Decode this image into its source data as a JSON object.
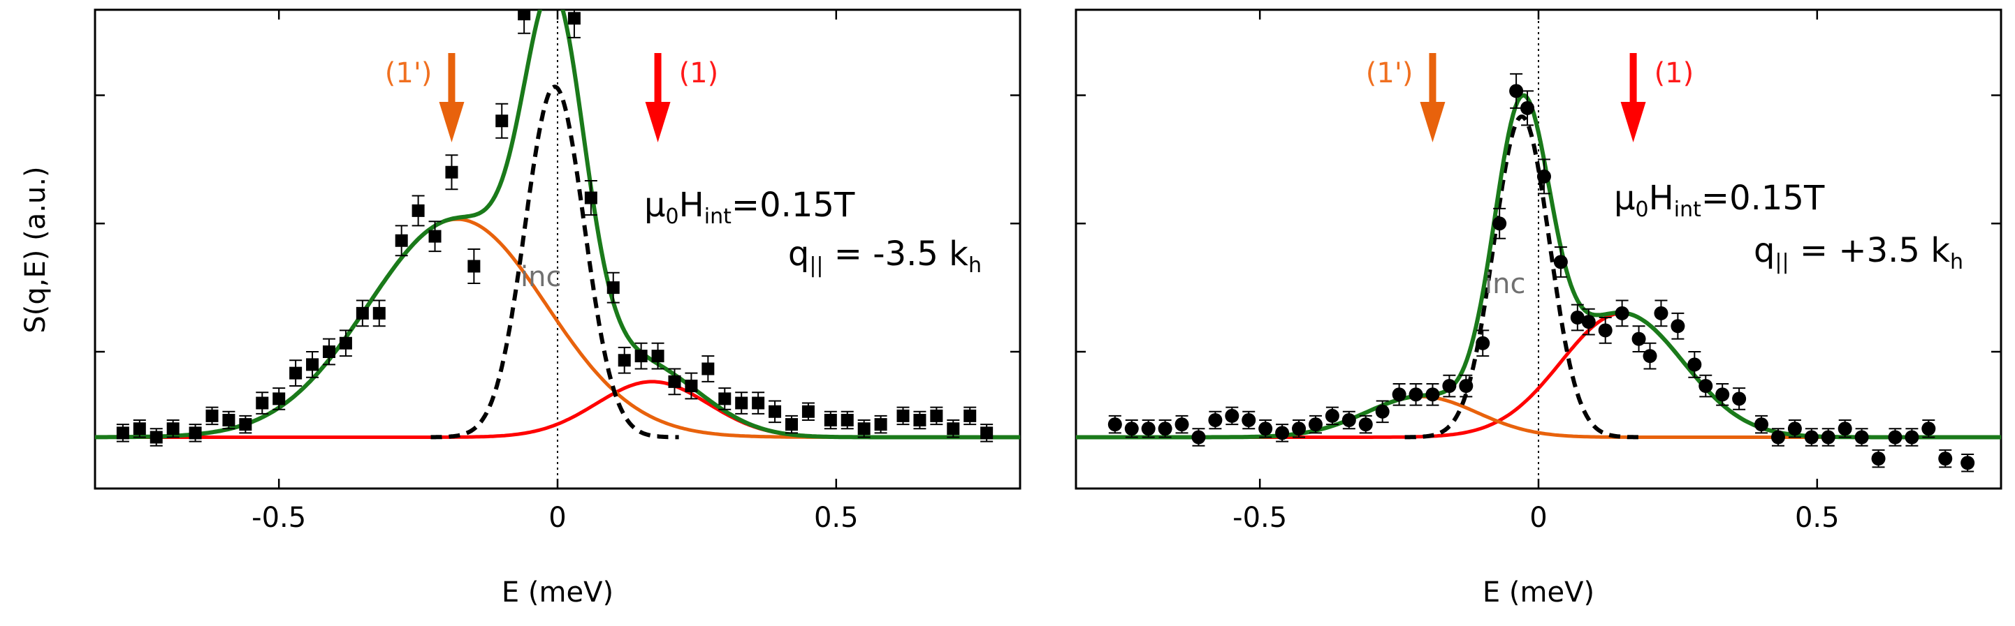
{
  "y_axis_label": "S(q,E) (a.u.)",
  "colors": {
    "total_fit": "#1a7a1a",
    "orange_mode": "#e8620c",
    "red_mode": "#ff0000",
    "incoherent": "#000000",
    "points": "#000000",
    "label_1prime": "#f07020",
    "label_1": "#ff1a1a",
    "inc_label": "#707070"
  },
  "chart_data": [
    {
      "type": "scatter",
      "panel": "left",
      "xlabel": "E (meV)",
      "ylabel": "S(q,E) (a.u.)",
      "xlim": [
        -0.83,
        0.83
      ],
      "ylim": [
        -0.12,
        1.0
      ],
      "xticks": [
        -0.5,
        0,
        0.5
      ],
      "xtick_labels": [
        "-0.5",
        "0",
        "0.5"
      ],
      "yticks": [
        0.2,
        0.5,
        0.8
      ],
      "marker": "square",
      "annotations": {
        "field": "μ0Hint=0.15T",
        "field_parts": {
          "mu": "μ",
          "mu_sub": "0",
          "H": "H",
          "H_sub": "int",
          "rest": "=0.15T"
        },
        "momentum": "q|| = -3.5 kh",
        "momentum_parts": {
          "q": "q",
          "q_sub": "||",
          "mid": " = -3.5 k",
          "k_sub": "h"
        },
        "inc_label": "inc",
        "arrow_1prime_label": "(1')",
        "arrow_1_label": "(1)"
      },
      "arrows": {
        "one_prime_E": -0.19,
        "one_E": 0.18
      },
      "curves": {
        "orange": {
          "center": -0.18,
          "amp": 0.51,
          "sigma": 0.16
        },
        "red": {
          "center": 0.17,
          "amp": 0.13,
          "sigma": 0.1
        },
        "incoherent": {
          "center": -0.005,
          "amp": 0.82,
          "sigma": 0.053
        },
        "total_peak": 1.05
      },
      "points": [
        {
          "x": -0.78,
          "y": 0.01,
          "err": 0.02
        },
        {
          "x": -0.75,
          "y": 0.02,
          "err": 0.02
        },
        {
          "x": -0.72,
          "y": 0.0,
          "err": 0.02
        },
        {
          "x": -0.69,
          "y": 0.02,
          "err": 0.02
        },
        {
          "x": -0.65,
          "y": 0.01,
          "err": 0.02
        },
        {
          "x": -0.62,
          "y": 0.05,
          "err": 0.02
        },
        {
          "x": -0.59,
          "y": 0.04,
          "err": 0.02
        },
        {
          "x": -0.56,
          "y": 0.03,
          "err": 0.02
        },
        {
          "x": -0.53,
          "y": 0.08,
          "err": 0.025
        },
        {
          "x": -0.5,
          "y": 0.09,
          "err": 0.025
        },
        {
          "x": -0.47,
          "y": 0.15,
          "err": 0.03
        },
        {
          "x": -0.44,
          "y": 0.17,
          "err": 0.03
        },
        {
          "x": -0.41,
          "y": 0.2,
          "err": 0.03
        },
        {
          "x": -0.38,
          "y": 0.22,
          "err": 0.03
        },
        {
          "x": -0.35,
          "y": 0.29,
          "err": 0.03
        },
        {
          "x": -0.32,
          "y": 0.29,
          "err": 0.03
        },
        {
          "x": -0.28,
          "y": 0.46,
          "err": 0.035
        },
        {
          "x": -0.25,
          "y": 0.53,
          "err": 0.035
        },
        {
          "x": -0.22,
          "y": 0.47,
          "err": 0.035
        },
        {
          "x": -0.19,
          "y": 0.62,
          "err": 0.04
        },
        {
          "x": -0.15,
          "y": 0.4,
          "err": 0.04
        },
        {
          "x": -0.1,
          "y": 0.74,
          "err": 0.04
        },
        {
          "x": -0.06,
          "y": 0.99,
          "err": 0.045
        },
        {
          "x": 0.03,
          "y": 0.98,
          "err": 0.045
        },
        {
          "x": 0.06,
          "y": 0.56,
          "err": 0.04
        },
        {
          "x": 0.1,
          "y": 0.35,
          "err": 0.035
        },
        {
          "x": 0.12,
          "y": 0.18,
          "err": 0.03
        },
        {
          "x": 0.15,
          "y": 0.19,
          "err": 0.03
        },
        {
          "x": 0.18,
          "y": 0.19,
          "err": 0.03
        },
        {
          "x": 0.21,
          "y": 0.13,
          "err": 0.03
        },
        {
          "x": 0.24,
          "y": 0.12,
          "err": 0.03
        },
        {
          "x": 0.27,
          "y": 0.16,
          "err": 0.03
        },
        {
          "x": 0.3,
          "y": 0.09,
          "err": 0.025
        },
        {
          "x": 0.33,
          "y": 0.08,
          "err": 0.025
        },
        {
          "x": 0.36,
          "y": 0.08,
          "err": 0.025
        },
        {
          "x": 0.39,
          "y": 0.06,
          "err": 0.025
        },
        {
          "x": 0.42,
          "y": 0.03,
          "err": 0.02
        },
        {
          "x": 0.45,
          "y": 0.06,
          "err": 0.02
        },
        {
          "x": 0.49,
          "y": 0.04,
          "err": 0.02
        },
        {
          "x": 0.52,
          "y": 0.04,
          "err": 0.02
        },
        {
          "x": 0.55,
          "y": 0.02,
          "err": 0.02
        },
        {
          "x": 0.58,
          "y": 0.03,
          "err": 0.02
        },
        {
          "x": 0.62,
          "y": 0.05,
          "err": 0.02
        },
        {
          "x": 0.65,
          "y": 0.04,
          "err": 0.02
        },
        {
          "x": 0.68,
          "y": 0.05,
          "err": 0.02
        },
        {
          "x": 0.71,
          "y": 0.02,
          "err": 0.02
        },
        {
          "x": 0.74,
          "y": 0.05,
          "err": 0.02
        },
        {
          "x": 0.77,
          "y": 0.01,
          "err": 0.02
        }
      ]
    },
    {
      "type": "scatter",
      "panel": "right",
      "xlabel": "E (meV)",
      "ylabel": "",
      "xlim": [
        -0.83,
        0.83
      ],
      "ylim": [
        -0.12,
        1.0
      ],
      "xticks": [
        -0.5,
        0,
        0.5
      ],
      "xtick_labels": [
        "-0.5",
        "0",
        "0.5"
      ],
      "yticks": [
        0.2,
        0.5,
        0.8
      ],
      "marker": "circle",
      "annotations": {
        "field": "μ0Hint=0.15T",
        "field_parts": {
          "mu": "μ",
          "mu_sub": "0",
          "H": "H",
          "H_sub": "int",
          "rest": "=0.15T"
        },
        "momentum": "q|| = +3.5 kh",
        "momentum_parts": {
          "q": "q",
          "q_sub": "||",
          "mid": " = +3.5 k",
          "k_sub": "h"
        },
        "inc_label": "inc",
        "arrow_1prime_label": "(1')",
        "arrow_1_label": "(1)"
      },
      "arrows": {
        "one_prime_E": -0.19,
        "one_E": 0.17
      },
      "curves": {
        "orange": {
          "center": -0.21,
          "amp": 0.095,
          "sigma": 0.1
        },
        "red": {
          "center": 0.15,
          "amp": 0.29,
          "sigma": 0.11
        },
        "incoherent": {
          "center": -0.03,
          "amp": 0.75,
          "sigma": 0.05
        },
        "total_peak": 0.8
      },
      "points": [
        {
          "x": -0.76,
          "y": 0.03,
          "err": 0.02
        },
        {
          "x": -0.73,
          "y": 0.02,
          "err": 0.02
        },
        {
          "x": -0.7,
          "y": 0.02,
          "err": 0.02
        },
        {
          "x": -0.67,
          "y": 0.02,
          "err": 0.02
        },
        {
          "x": -0.64,
          "y": 0.03,
          "err": 0.02
        },
        {
          "x": -0.61,
          "y": 0.0,
          "err": 0.02
        },
        {
          "x": -0.58,
          "y": 0.04,
          "err": 0.02
        },
        {
          "x": -0.55,
          "y": 0.05,
          "err": 0.02
        },
        {
          "x": -0.52,
          "y": 0.04,
          "err": 0.02
        },
        {
          "x": -0.49,
          "y": 0.02,
          "err": 0.02
        },
        {
          "x": -0.46,
          "y": 0.01,
          "err": 0.02
        },
        {
          "x": -0.43,
          "y": 0.02,
          "err": 0.02
        },
        {
          "x": -0.4,
          "y": 0.03,
          "err": 0.02
        },
        {
          "x": -0.37,
          "y": 0.05,
          "err": 0.02
        },
        {
          "x": -0.34,
          "y": 0.04,
          "err": 0.02
        },
        {
          "x": -0.31,
          "y": 0.03,
          "err": 0.02
        },
        {
          "x": -0.28,
          "y": 0.06,
          "err": 0.025
        },
        {
          "x": -0.25,
          "y": 0.1,
          "err": 0.025
        },
        {
          "x": -0.22,
          "y": 0.1,
          "err": 0.025
        },
        {
          "x": -0.19,
          "y": 0.1,
          "err": 0.025
        },
        {
          "x": -0.16,
          "y": 0.12,
          "err": 0.025
        },
        {
          "x": -0.13,
          "y": 0.12,
          "err": 0.025
        },
        {
          "x": -0.1,
          "y": 0.22,
          "err": 0.03
        },
        {
          "x": -0.07,
          "y": 0.5,
          "err": 0.035
        },
        {
          "x": -0.04,
          "y": 0.81,
          "err": 0.04
        },
        {
          "x": -0.02,
          "y": 0.77,
          "err": 0.04
        },
        {
          "x": 0.01,
          "y": 0.61,
          "err": 0.04
        },
        {
          "x": 0.04,
          "y": 0.41,
          "err": 0.035
        },
        {
          "x": 0.07,
          "y": 0.28,
          "err": 0.03
        },
        {
          "x": 0.09,
          "y": 0.27,
          "err": 0.03
        },
        {
          "x": 0.12,
          "y": 0.25,
          "err": 0.03
        },
        {
          "x": 0.15,
          "y": 0.29,
          "err": 0.03
        },
        {
          "x": 0.18,
          "y": 0.23,
          "err": 0.03
        },
        {
          "x": 0.2,
          "y": 0.19,
          "err": 0.03
        },
        {
          "x": 0.22,
          "y": 0.29,
          "err": 0.03
        },
        {
          "x": 0.25,
          "y": 0.26,
          "err": 0.03
        },
        {
          "x": 0.28,
          "y": 0.17,
          "err": 0.03
        },
        {
          "x": 0.3,
          "y": 0.12,
          "err": 0.025
        },
        {
          "x": 0.33,
          "y": 0.1,
          "err": 0.025
        },
        {
          "x": 0.36,
          "y": 0.09,
          "err": 0.025
        },
        {
          "x": 0.4,
          "y": 0.03,
          "err": 0.02
        },
        {
          "x": 0.43,
          "y": 0.0,
          "err": 0.02
        },
        {
          "x": 0.46,
          "y": 0.02,
          "err": 0.02
        },
        {
          "x": 0.49,
          "y": 0.0,
          "err": 0.02
        },
        {
          "x": 0.52,
          "y": 0.0,
          "err": 0.02
        },
        {
          "x": 0.55,
          "y": 0.02,
          "err": 0.02
        },
        {
          "x": 0.58,
          "y": 0.0,
          "err": 0.02
        },
        {
          "x": 0.61,
          "y": -0.05,
          "err": 0.02
        },
        {
          "x": 0.64,
          "y": 0.0,
          "err": 0.02
        },
        {
          "x": 0.67,
          "y": 0.0,
          "err": 0.02
        },
        {
          "x": 0.7,
          "y": 0.02,
          "err": 0.02
        },
        {
          "x": 0.73,
          "y": -0.05,
          "err": 0.02
        },
        {
          "x": 0.77,
          "y": -0.06,
          "err": 0.02
        }
      ]
    }
  ]
}
